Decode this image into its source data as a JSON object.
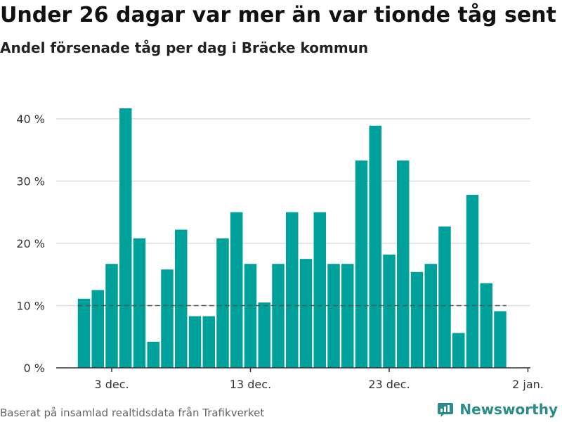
{
  "header": {
    "title": "Under 26 dagar var mer än var tionde tåg sent",
    "subtitle": "Andel försenade tåg per dag i Bräcke kommun"
  },
  "footer": {
    "source": "Baserat på insamlad realtidsdata från Trafikverket",
    "brand": "Newsworthy"
  },
  "colors": {
    "bar": "#00a19a",
    "grid": "#dddddd",
    "reference_line": "#555555",
    "brand": "#2b8c8a",
    "logo_icon": "newsworthy-chart-icon"
  },
  "chart_data": {
    "type": "bar",
    "x": [
      "2022-12-01",
      "2022-12-02",
      "2022-12-03",
      "2022-12-04",
      "2022-12-05",
      "2022-12-06",
      "2022-12-07",
      "2022-12-08",
      "2022-12-09",
      "2022-12-10",
      "2022-12-11",
      "2022-12-12",
      "2022-12-13",
      "2022-12-14",
      "2022-12-15",
      "2022-12-16",
      "2022-12-17",
      "2022-12-18",
      "2022-12-19",
      "2022-12-20",
      "2022-12-21",
      "2022-12-22",
      "2022-12-23",
      "2022-12-24",
      "2022-12-25",
      "2022-12-26",
      "2022-12-27",
      "2022-12-28",
      "2022-12-29",
      "2022-12-30",
      "2022-12-31"
    ],
    "values": [
      11.1,
      12.5,
      16.7,
      41.7,
      20.8,
      4.2,
      15.8,
      22.2,
      8.3,
      8.3,
      20.8,
      25.0,
      16.7,
      10.5,
      16.7,
      25.0,
      17.5,
      25.0,
      16.7,
      16.7,
      33.3,
      38.9,
      18.2,
      33.3,
      15.4,
      16.7,
      22.7,
      5.6,
      27.8,
      13.6,
      9.1
    ],
    "reference_line": 10,
    "ylim": [
      0,
      45
    ],
    "yticks": [
      0,
      10,
      20,
      30,
      40
    ],
    "ytick_labels": [
      "0 %",
      "10 %",
      "20 %",
      "30 %",
      "40 %"
    ],
    "xticks": [
      {
        "date": "2022-12-03",
        "label": "3 dec."
      },
      {
        "date": "2022-12-13",
        "label": "13 dec."
      },
      {
        "date": "2022-12-23",
        "label": "23 dec."
      },
      {
        "date": "2023-01-02",
        "label": "2 jan."
      }
    ],
    "xlabel": "",
    "ylabel": "",
    "grid": true,
    "legend": "none"
  }
}
